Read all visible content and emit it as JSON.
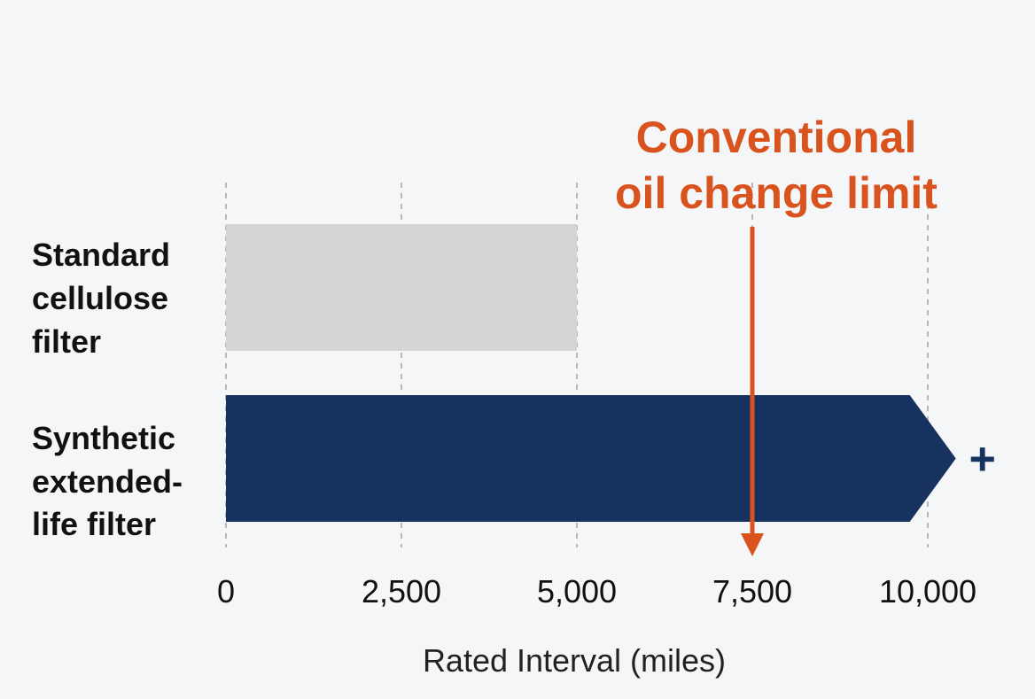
{
  "chart_data": {
    "type": "bar",
    "orientation": "horizontal",
    "categories": [
      "Standard cellulose filter",
      "Synthetic extended-life filter"
    ],
    "category_label_lines": [
      [
        "Standard",
        "cellulose",
        "filter"
      ],
      [
        "Synthetic",
        "extended-",
        "life filter"
      ]
    ],
    "values": [
      5000,
      10400
    ],
    "bar_colors": [
      "#d4d4d4",
      "#17325f"
    ],
    "open_ended_marker": "+",
    "xlabel": "Rated Interval (miles)",
    "ylabel": "",
    "xlim": [
      0,
      10000
    ],
    "x_ticks": [
      0,
      2500,
      5000,
      7500,
      10000
    ],
    "x_tick_labels": [
      "0",
      "2,500",
      "5,000",
      "7,500",
      "10,000"
    ],
    "grid": "vertical dashed",
    "annotation": {
      "x": 7500,
      "text_lines": [
        "Conventional",
        "oil change limit"
      ],
      "color": "#d9531e"
    }
  }
}
